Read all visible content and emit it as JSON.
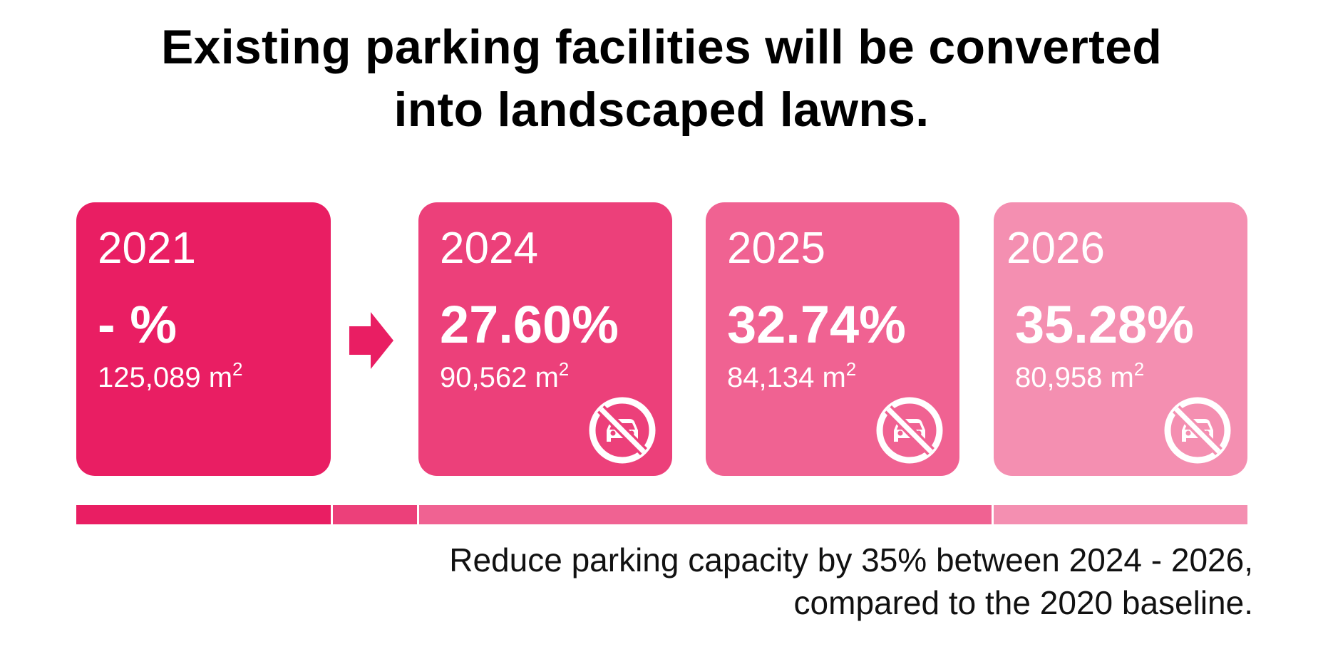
{
  "title": {
    "line1": "Existing parking facilities will be converted",
    "line2": "into landscaped lawns."
  },
  "cards": [
    {
      "year": "2021",
      "percent": "- %",
      "area": "125,089 m",
      "unit_sup": "2",
      "color": "#e91e63",
      "icon": null
    },
    {
      "year": "2024",
      "percent": "27.60%",
      "area": "90,562 m",
      "unit_sup": "2",
      "color": "#ec407a",
      "icon": "no-parking-car-icon"
    },
    {
      "year": "2025",
      "percent": "32.74%",
      "area": "84,134 m",
      "unit_sup": "2",
      "color": "#f06292",
      "icon": "no-parking-car-icon"
    },
    {
      "year": "2026",
      "percent": "35.28%",
      "area": "80,958 m",
      "unit_sup": "2",
      "color": "#f48fb1",
      "icon": "no-parking-car-icon"
    }
  ],
  "arrow": {
    "icon": "right-arrow-icon",
    "color": "#e91e63"
  },
  "timeline_colors": [
    "#e91e63",
    "#ec407a",
    "#f06292",
    "#f48fb1"
  ],
  "caption": {
    "line1": "Reduce parking capacity by 35% between 2024 - 2026,",
    "line2": "compared to the 2020 baseline."
  }
}
